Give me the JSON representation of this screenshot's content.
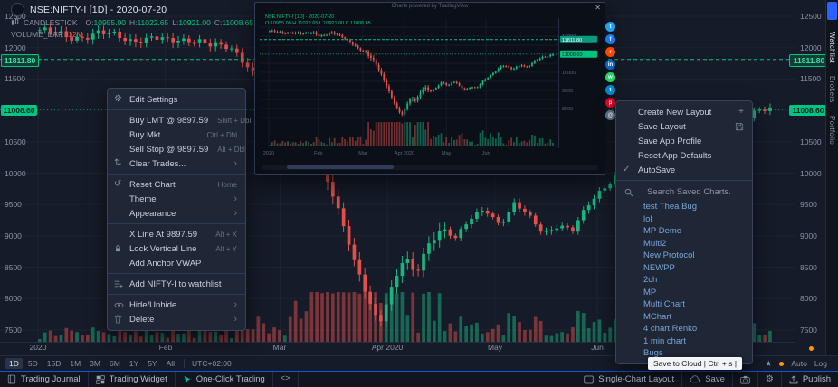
{
  "colors": {
    "bg": "#151b28",
    "up": "#17b57f",
    "down": "#e2504a",
    "green": "#00c582",
    "red": "#e8544e",
    "accent": "#2962ff"
  },
  "symbol_header": {
    "title": "NSE:NIFTY-I [1D] - 2020-07-20",
    "series_type": "CANDLESTICK",
    "ohlc": [
      {
        "label": "O:",
        "value": "10955.00"
      },
      {
        "label": "H:",
        "value": "11022.65"
      },
      {
        "label": "L:",
        "value": "10921.00"
      },
      {
        "label": "C:",
        "value": "11008.65"
      }
    ],
    "volume_label": "VOLUME_BAR",
    "volume_value": "12M"
  },
  "price_axis": {
    "values": [
      12500,
      12000,
      11500,
      10500,
      10000,
      9500,
      9000,
      8500,
      8000,
      7500
    ]
  },
  "badges": {
    "alert": "11811.80",
    "alert_value": 11811.8,
    "last": "11008.60",
    "last_value": 11008.6
  },
  "chart_data": {
    "type": "candlestick",
    "symbol": "NSE:NIFTY-I",
    "interval": "1D",
    "y_axis": {
      "max": 12500,
      "min": 7500
    },
    "alert_price": 11811.8,
    "last_price": 11008.6,
    "months": [
      {
        "label": "2020",
        "t": 0
      },
      {
        "label": "Feb",
        "t": 0.173
      },
      {
        "label": "Mar",
        "t": 0.329
      },
      {
        "label": "Apr 2020",
        "t": 0.475
      },
      {
        "label": "May",
        "t": 0.621
      },
      {
        "label": "Jun",
        "t": 0.76
      }
    ],
    "anchors": [
      [
        0,
        12280
      ],
      [
        0.04,
        12150
      ],
      [
        0.08,
        12250
      ],
      [
        0.12,
        12100
      ],
      [
        0.155,
        12200
      ],
      [
        0.18,
        12050
      ],
      [
        0.22,
        12150
      ],
      [
        0.26,
        11950
      ],
      [
        0.29,
        11650
      ],
      [
        0.315,
        11250
      ],
      [
        0.34,
        11050
      ],
      [
        0.37,
        10650
      ],
      [
        0.39,
        10050
      ],
      [
        0.41,
        9350
      ],
      [
        0.43,
        8600
      ],
      [
        0.45,
        8000
      ],
      [
        0.465,
        7620
      ],
      [
        0.48,
        8120
      ],
      [
        0.5,
        8650
      ],
      [
        0.515,
        8350
      ],
      [
        0.53,
        8850
      ],
      [
        0.55,
        9150
      ],
      [
        0.57,
        8950
      ],
      [
        0.59,
        9250
      ],
      [
        0.61,
        9450
      ],
      [
        0.63,
        9200
      ],
      [
        0.65,
        9500
      ],
      [
        0.67,
        9280
      ],
      [
        0.69,
        9050
      ],
      [
        0.71,
        9200
      ],
      [
        0.73,
        9080
      ],
      [
        0.75,
        9450
      ],
      [
        0.77,
        9750
      ],
      [
        0.79,
        10000
      ],
      [
        0.81,
        10250
      ],
      [
        0.83,
        10350
      ],
      [
        0.85,
        10150
      ],
      [
        0.87,
        10300
      ],
      [
        0.89,
        10460
      ],
      [
        0.905,
        10250
      ],
      [
        0.92,
        10400
      ],
      [
        0.94,
        10620
      ],
      [
        0.96,
        10820
      ],
      [
        0.98,
        10940
      ],
      [
        1,
        11010
      ]
    ]
  },
  "context_menu": {
    "items": [
      {
        "icon": "gear",
        "label": "Edit Settings",
        "sep": true
      },
      {
        "label": "Buy LMT @ 9897.59",
        "shortcut": "Shift + Dbl"
      },
      {
        "label": "Buy Mkt",
        "shortcut": "Ctrl + Dbl"
      },
      {
        "label": "Sell Stop @ 9897.59",
        "shortcut": "Alt + Dbl"
      },
      {
        "icon": "clear",
        "label": "Clear Trades...",
        "submenu": true,
        "sep": true
      },
      {
        "icon": "reset",
        "label": "Reset Chart",
        "shortcut": "Home"
      },
      {
        "label": "Theme",
        "submenu": true
      },
      {
        "label": "Appearance",
        "submenu": true,
        "sep": true
      },
      {
        "label": "X Line At 9897.59",
        "shortcut": "Alt + X"
      },
      {
        "icon": "lock",
        "label": "Lock Vertical Line",
        "shortcut": "Alt + Y"
      },
      {
        "label": "Add Anchor VWAP",
        "sep": true
      },
      {
        "icon": "watchlist",
        "label": "Add NIFTY-I to watchlist",
        "sep": true
      },
      {
        "icon": "eye",
        "label": "Hide/Unhide",
        "submenu": true
      },
      {
        "icon": "trash",
        "label": "Delete",
        "submenu": true
      }
    ]
  },
  "layout_menu": {
    "items": [
      {
        "label": "Create New Layout",
        "right_icon": "plus"
      },
      {
        "label": "Save Layout",
        "right_icon": "save"
      },
      {
        "label": "Save App Profile"
      },
      {
        "label": "Reset App Defaults"
      },
      {
        "icon": "check",
        "label": "AutoSave",
        "sep": true
      }
    ],
    "search_placeholder": "Search Saved Charts.",
    "saved_charts": [
      "test Thea Bug",
      "lol",
      "MP Demo",
      "Multi2",
      "New Protocol",
      "NEWPP",
      "2ch",
      "MP",
      "Multi Chart",
      "MChart",
      "4 chart Renko",
      "1 min chart",
      "Bugs"
    ]
  },
  "popup": {
    "caption": "Charts powered by TradingView",
    "close_glyph": "✕",
    "legend_line1": "NSE:NIFTY-I [1D] - 2020-07-20",
    "legend_line2": "O 10955.00  H 11022.65  L 10921.00  C 11008.65",
    "axis_values": [
      12000,
      11000,
      10000,
      9000,
      8000
    ],
    "share_buttons": [
      {
        "name": "twitter",
        "color": "#1da1f2",
        "glyph": "t"
      },
      {
        "name": "facebook",
        "color": "#1877f2",
        "glyph": "f"
      },
      {
        "name": "reddit",
        "color": "#ff4500",
        "glyph": "r"
      },
      {
        "name": "linkedin",
        "color": "#0a66c2",
        "glyph": "in"
      },
      {
        "name": "whatsapp",
        "color": "#25d366",
        "glyph": "w"
      },
      {
        "name": "telegram",
        "color": "#0088cc",
        "glyph": "t"
      },
      {
        "name": "pinterest",
        "color": "#e60023",
        "glyph": "p"
      },
      {
        "name": "email",
        "color": "#64748b",
        "glyph": "@"
      }
    ]
  },
  "toolbar": {
    "timeframes": [
      "1D",
      "5D",
      "15D",
      "1M",
      "3M",
      "6M",
      "1Y",
      "5Y",
      "All"
    ],
    "active": "1D",
    "timezone": "UTC+02:00",
    "auto_label": "Auto",
    "log_label": "Log"
  },
  "statusbar": {
    "left": [
      {
        "icon": "journal",
        "label": "Trading Journal"
      },
      {
        "icon": "widget",
        "label": "Trading Widget"
      },
      {
        "icon": "oneclick",
        "label": "One-Click Trading",
        "accent": true
      },
      {
        "icon": "code",
        "label": ""
      }
    ],
    "right": [
      {
        "icon": "layout",
        "label": "Single-Chart Layout"
      },
      {
        "icon": "cloud",
        "label": "Save"
      },
      {
        "icon": "camera",
        "label": ""
      },
      {
        "icon": "gear",
        "label": ""
      },
      {
        "icon": "publish",
        "label": "Publish"
      }
    ]
  },
  "right_tabs": [
    {
      "label": "Watchlist",
      "active": true
    },
    {
      "label": "Brokers",
      "active": false
    },
    {
      "label": "Portfolio",
      "active": false
    }
  ],
  "misc": {
    "tooltip": "Save to Cloud | Ctrl + s |"
  }
}
